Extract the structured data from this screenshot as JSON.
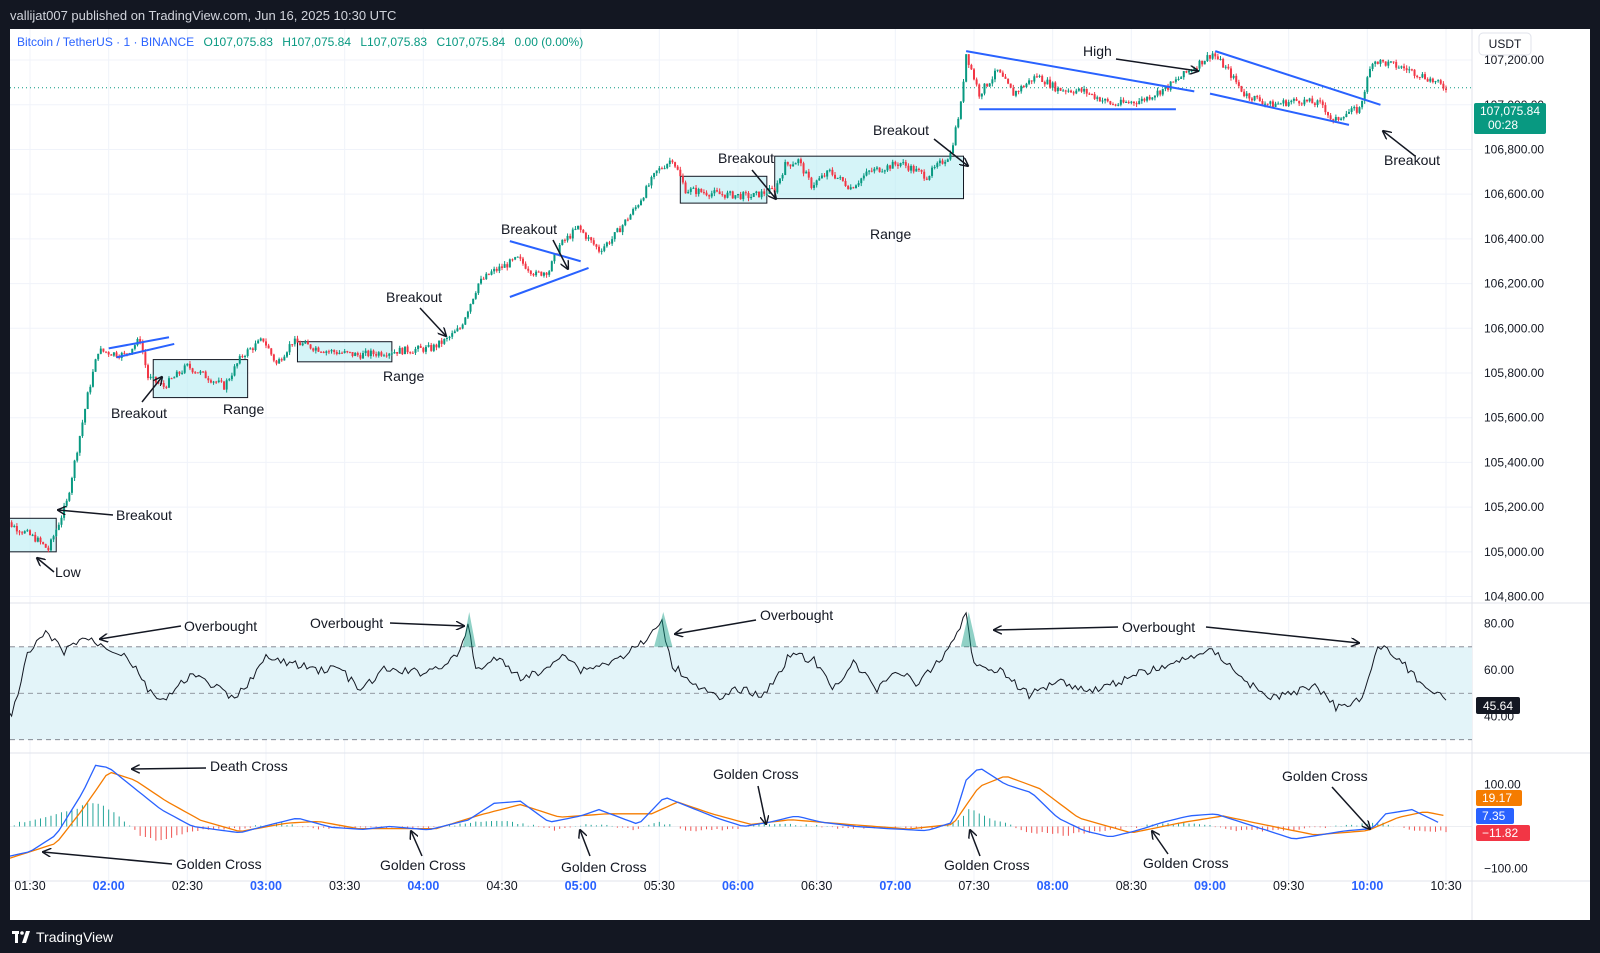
{
  "publish_info": "vallijat007 published on TradingView.com, Jun 16, 2025 10:30 UTC",
  "brand": "TradingView",
  "header": {
    "symbol": "Bitcoin / TetherUS · 1 · BINANCE",
    "open_label": "O",
    "open": "107,075.83",
    "high_label": "H",
    "high": "107,075.84",
    "low_label": "L",
    "low": "107,075.83",
    "close_label": "C",
    "close": "107,075.84",
    "change": "0.00 (0.00%)"
  },
  "currency": "USDT",
  "last_price": {
    "label": "107,075.84",
    "countdown": "00:28",
    "value": 107075.84
  },
  "rsi_value": {
    "label": "45.64",
    "value": 45.64
  },
  "macd_values": [
    {
      "label": "19.17",
      "color": "#f57c00"
    },
    {
      "label": "7.35",
      "color": "#2962ff"
    },
    {
      "label": "−11.82",
      "color": "#f23645"
    }
  ],
  "chart_data": [
    {
      "type": "candlestick",
      "x_ticks": [
        "01:30",
        "02:00",
        "02:30",
        "03:00",
        "03:30",
        "04:00",
        "04:30",
        "05:00",
        "05:30",
        "06:00",
        "06:30",
        "07:00",
        "07:30",
        "08:00",
        "08:30",
        "09:00",
        "09:30",
        "10:00",
        "10:30"
      ],
      "bold_ticks": [
        "02:00",
        "03:00",
        "04:00",
        "05:00",
        "06:00",
        "07:00",
        "08:00",
        "09:00",
        "10:00"
      ],
      "y_ticks": [
        "107,200.00",
        "107,000.00",
        "106,800.00",
        "106,600.00",
        "106,400.00",
        "106,200.00",
        "106,000.00",
        "105,800.00",
        "105,600.00",
        "105,400.00",
        "105,200.00",
        "105,000.00",
        "104,800.00"
      ],
      "ylim": [
        104780,
        107330
      ],
      "colors": {
        "up": "#089981",
        "down": "#f23645"
      },
      "price_path": [
        [
          "01:18",
          105160
        ],
        [
          "01:33",
          105060
        ],
        [
          "01:38",
          105010
        ],
        [
          "01:45",
          105220
        ],
        [
          "01:53",
          105700
        ],
        [
          "01:57",
          105900
        ],
        [
          "02:07",
          105880
        ],
        [
          "02:13",
          105950
        ],
        [
          "02:16",
          105780
        ],
        [
          "02:22",
          105740
        ],
        [
          "02:31",
          105830
        ],
        [
          "02:39",
          105780
        ],
        [
          "02:45",
          105740
        ],
        [
          "02:52",
          105880
        ],
        [
          "03:00",
          105950
        ],
        [
          "03:05",
          105840
        ],
        [
          "03:11",
          105940
        ],
        [
          "03:24",
          105900
        ],
        [
          "03:36",
          105880
        ],
        [
          "03:52",
          105900
        ],
        [
          "04:04",
          105910
        ],
        [
          "04:10",
          105950
        ],
        [
          "04:15",
          106000
        ],
        [
          "04:22",
          106200
        ],
        [
          "04:27",
          106250
        ],
        [
          "04:37",
          106310
        ],
        [
          "04:44",
          106240
        ],
        [
          "04:49",
          106260
        ],
        [
          "04:53",
          106370
        ],
        [
          "05:00",
          106450
        ],
        [
          "05:08",
          106350
        ],
        [
          "05:13",
          106400
        ],
        [
          "05:22",
          106540
        ],
        [
          "05:30",
          106700
        ],
        [
          "05:36",
          106760
        ],
        [
          "05:41",
          106620
        ],
        [
          "05:54",
          106600
        ],
        [
          "06:06",
          106590
        ],
        [
          "06:15",
          106620
        ],
        [
          "06:19",
          106730
        ],
        [
          "06:24",
          106750
        ],
        [
          "06:29",
          106640
        ],
        [
          "06:36",
          106700
        ],
        [
          "06:44",
          106630
        ],
        [
          "06:51",
          106700
        ],
        [
          "07:03",
          106740
        ],
        [
          "07:13",
          106680
        ],
        [
          "07:22",
          106780
        ],
        [
          "07:26",
          107000
        ],
        [
          "07:28",
          107230
        ],
        [
          "07:33",
          107050
        ],
        [
          "07:40",
          107150
        ],
        [
          "07:46",
          107050
        ],
        [
          "07:55",
          107130
        ],
        [
          "08:03",
          107070
        ],
        [
          "08:13",
          107060
        ],
        [
          "08:24",
          107000
        ],
        [
          "08:35",
          107020
        ],
        [
          "08:45",
          107080
        ],
        [
          "08:55",
          107170
        ],
        [
          "09:02",
          107230
        ],
        [
          "09:08",
          107150
        ],
        [
          "09:14",
          107050
        ],
        [
          "09:24",
          107000
        ],
        [
          "09:35",
          107020
        ],
        [
          "09:44",
          107000
        ],
        [
          "09:48",
          106920
        ],
        [
          "09:52",
          106960
        ],
        [
          "09:58",
          106980
        ],
        [
          "10:03",
          107200
        ],
        [
          "10:10",
          107180
        ],
        [
          "10:16",
          107160
        ],
        [
          "10:24",
          107120
        ],
        [
          "10:30",
          107080
        ]
      ],
      "annotations": [
        {
          "text": "Low"
        },
        {
          "text": "Breakout"
        },
        {
          "text": "Breakout"
        },
        {
          "text": "Range"
        },
        {
          "text": "Range"
        },
        {
          "text": "Breakout"
        },
        {
          "text": "Breakout"
        },
        {
          "text": "Breakout"
        },
        {
          "text": "Range"
        },
        {
          "text": "Breakout"
        },
        {
          "text": "High"
        },
        {
          "text": "Breakout"
        }
      ]
    },
    {
      "type": "line",
      "indicator": "RSI",
      "y_ticks": [
        "80.00",
        "60.00",
        "40.00"
      ],
      "ylim": [
        26,
        88
      ],
      "levels": [
        70,
        50,
        30
      ],
      "series_path": [
        [
          "01:17",
          44
        ],
        [
          "01:23",
          40
        ],
        [
          "01:29",
          66
        ],
        [
          "01:36",
          76
        ],
        [
          "01:43",
          68
        ],
        [
          "01:50",
          74
        ],
        [
          "01:57",
          71
        ],
        [
          "02:07",
          66
        ],
        [
          "02:16",
          50
        ],
        [
          "02:22",
          47
        ],
        [
          "02:31",
          58
        ],
        [
          "02:39",
          54
        ],
        [
          "02:48",
          47
        ],
        [
          "03:00",
          65
        ],
        [
          "03:09",
          63
        ],
        [
          "03:20",
          60
        ],
        [
          "03:28",
          61
        ],
        [
          "03:36",
          51
        ],
        [
          "03:45",
          60
        ],
        [
          "04:00",
          59
        ],
        [
          "04:07",
          62
        ],
        [
          "04:14",
          67
        ],
        [
          "04:17",
          80
        ],
        [
          "04:20",
          60
        ],
        [
          "04:28",
          65
        ],
        [
          "04:37",
          57
        ],
        [
          "04:46",
          59
        ],
        [
          "04:53",
          68
        ],
        [
          "05:00",
          60
        ],
        [
          "05:13",
          64
        ],
        [
          "05:24",
          72
        ],
        [
          "05:31",
          80
        ],
        [
          "05:35",
          62
        ],
        [
          "05:45",
          53
        ],
        [
          "05:53",
          47
        ],
        [
          "06:00",
          52
        ],
        [
          "06:10",
          49
        ],
        [
          "06:20",
          67
        ],
        [
          "06:29",
          64
        ],
        [
          "06:36",
          52
        ],
        [
          "06:44",
          63
        ],
        [
          "06:53",
          52
        ],
        [
          "07:00",
          60
        ],
        [
          "07:09",
          54
        ],
        [
          "07:19",
          67
        ],
        [
          "07:27",
          84
        ],
        [
          "07:30",
          62
        ],
        [
          "07:40",
          60
        ],
        [
          "07:51",
          49
        ],
        [
          "08:02",
          56
        ],
        [
          "08:13",
          51
        ],
        [
          "08:23",
          54
        ],
        [
          "08:34",
          59
        ],
        [
          "08:45",
          62
        ],
        [
          "08:55",
          67
        ],
        [
          "09:02",
          68
        ],
        [
          "09:12",
          57
        ],
        [
          "09:22",
          48
        ],
        [
          "09:32",
          50
        ],
        [
          "09:40",
          54
        ],
        [
          "09:48",
          44
        ],
        [
          "09:58",
          48
        ],
        [
          "10:04",
          70
        ],
        [
          "10:10",
          67
        ],
        [
          "10:20",
          55
        ],
        [
          "10:30",
          47
        ]
      ]
    },
    {
      "type": "macd",
      "y_ticks": [
        "100.00",
        "−100.00"
      ],
      "ylim": [
        -120,
        165
      ],
      "colors": {
        "macd": "#2962ff",
        "signal": "#f57c00",
        "hist_pos": "#26a69a",
        "hist_neg": "#ef5350"
      },
      "macd_path": [
        [
          "01:15",
          -80
        ],
        [
          "01:30",
          -60
        ],
        [
          "01:40",
          -20
        ],
        [
          "01:50",
          80
        ],
        [
          "01:55",
          145
        ],
        [
          "02:00",
          140
        ],
        [
          "02:10",
          90
        ],
        [
          "02:20",
          40
        ],
        [
          "02:32",
          0
        ],
        [
          "02:50",
          -15
        ],
        [
          "03:02",
          5
        ],
        [
          "03:12",
          20
        ],
        [
          "03:25",
          -2
        ],
        [
          "03:37",
          -7
        ],
        [
          "03:47",
          0
        ],
        [
          "04:02",
          -8
        ],
        [
          "04:17",
          15
        ],
        [
          "04:27",
          55
        ],
        [
          "04:37",
          60
        ],
        [
          "04:48",
          10
        ],
        [
          "05:00",
          25
        ],
        [
          "05:07",
          40
        ],
        [
          "05:22",
          5
        ],
        [
          "05:32",
          70
        ],
        [
          "05:42",
          45
        ],
        [
          "05:52",
          20
        ],
        [
          "06:02",
          0
        ],
        [
          "06:12",
          10
        ],
        [
          "06:22",
          25
        ],
        [
          "06:32",
          10
        ],
        [
          "06:45",
          0
        ],
        [
          "06:57",
          -5
        ],
        [
          "07:12",
          -10
        ],
        [
          "07:22",
          10
        ],
        [
          "07:27",
          110
        ],
        [
          "07:32",
          140
        ],
        [
          "07:42",
          100
        ],
        [
          "07:52",
          80
        ],
        [
          "08:02",
          20
        ],
        [
          "08:12",
          -10
        ],
        [
          "08:22",
          -25
        ],
        [
          "08:32",
          -10
        ],
        [
          "08:42",
          10
        ],
        [
          "08:52",
          25
        ],
        [
          "09:02",
          30
        ],
        [
          "09:12",
          10
        ],
        [
          "09:22",
          -10
        ],
        [
          "09:32",
          -30
        ],
        [
          "09:42",
          -20
        ],
        [
          "09:52",
          -10
        ],
        [
          "10:02",
          -5
        ],
        [
          "10:07",
          30
        ],
        [
          "10:17",
          40
        ],
        [
          "10:27",
          10
        ]
      ],
      "signal_path": [
        [
          "01:15",
          -90
        ],
        [
          "01:40",
          -40
        ],
        [
          "01:50",
          40
        ],
        [
          "02:00",
          130
        ],
        [
          "02:10",
          110
        ],
        [
          "02:22",
          60
        ],
        [
          "02:35",
          15
        ],
        [
          "02:50",
          -12
        ],
        [
          "03:08",
          8
        ],
        [
          "03:20",
          12
        ],
        [
          "03:35",
          -5
        ],
        [
          "04:05",
          -5
        ],
        [
          "04:22",
          28
        ],
        [
          "04:37",
          52
        ],
        [
          "04:52",
          22
        ],
        [
          "05:10",
          30
        ],
        [
          "05:27",
          30
        ],
        [
          "05:37",
          58
        ],
        [
          "05:50",
          30
        ],
        [
          "06:05",
          5
        ],
        [
          "06:20",
          16
        ],
        [
          "06:40",
          6
        ],
        [
          "07:05",
          -6
        ],
        [
          "07:22",
          5
        ],
        [
          "07:32",
          95
        ],
        [
          "07:42",
          120
        ],
        [
          "07:55",
          90
        ],
        [
          "08:10",
          20
        ],
        [
          "08:30",
          -15
        ],
        [
          "08:50",
          10
        ],
        [
          "09:05",
          25
        ],
        [
          "09:20",
          5
        ],
        [
          "09:40",
          -20
        ],
        [
          "10:00",
          -10
        ],
        [
          "10:12",
          22
        ],
        [
          "10:22",
          35
        ],
        [
          "10:30",
          25
        ]
      ],
      "hist_path": [
        [
          "01:15",
          -10
        ],
        [
          "01:30",
          15
        ],
        [
          "01:45",
          35
        ],
        [
          "01:55",
          60
        ],
        [
          "02:05",
          20
        ],
        [
          "02:12",
          -20
        ],
        [
          "02:20",
          -35
        ],
        [
          "02:32",
          -10
        ],
        [
          "02:50",
          -5
        ],
        [
          "03:05",
          8
        ],
        [
          "03:20",
          -6
        ],
        [
          "03:40",
          0
        ],
        [
          "04:00",
          -5
        ],
        [
          "04:17",
          8
        ],
        [
          "04:27",
          14
        ],
        [
          "04:40",
          4
        ],
        [
          "04:50",
          -8
        ],
        [
          "05:05",
          6
        ],
        [
          "05:20",
          -6
        ],
        [
          "05:30",
          10
        ],
        [
          "05:42",
          -10
        ],
        [
          "05:55",
          -8
        ],
        [
          "06:10",
          6
        ],
        [
          "06:25",
          4
        ],
        [
          "06:40",
          -4
        ],
        [
          "06:55",
          -2
        ],
        [
          "07:15",
          -4
        ],
        [
          "07:25",
          15
        ],
        [
          "07:28",
          40
        ],
        [
          "07:40",
          12
        ],
        [
          "07:50",
          -12
        ],
        [
          "08:05",
          -20
        ],
        [
          "08:20",
          -8
        ],
        [
          "08:40",
          4
        ],
        [
          "08:55",
          8
        ],
        [
          "09:10",
          -8
        ],
        [
          "09:25",
          -10
        ],
        [
          "09:40",
          -4
        ],
        [
          "09:55",
          4
        ],
        [
          "10:05",
          10
        ],
        [
          "10:15",
          -6
        ],
        [
          "10:25",
          -10
        ],
        [
          "10:30",
          -12
        ]
      ]
    }
  ],
  "annotation_labels": {
    "low": "Low",
    "breakout": "Breakout",
    "range": "Range",
    "high": "High",
    "overbought": "Overbought",
    "death_cross": "Death Cross",
    "golden_cross": "Golden Cross"
  }
}
